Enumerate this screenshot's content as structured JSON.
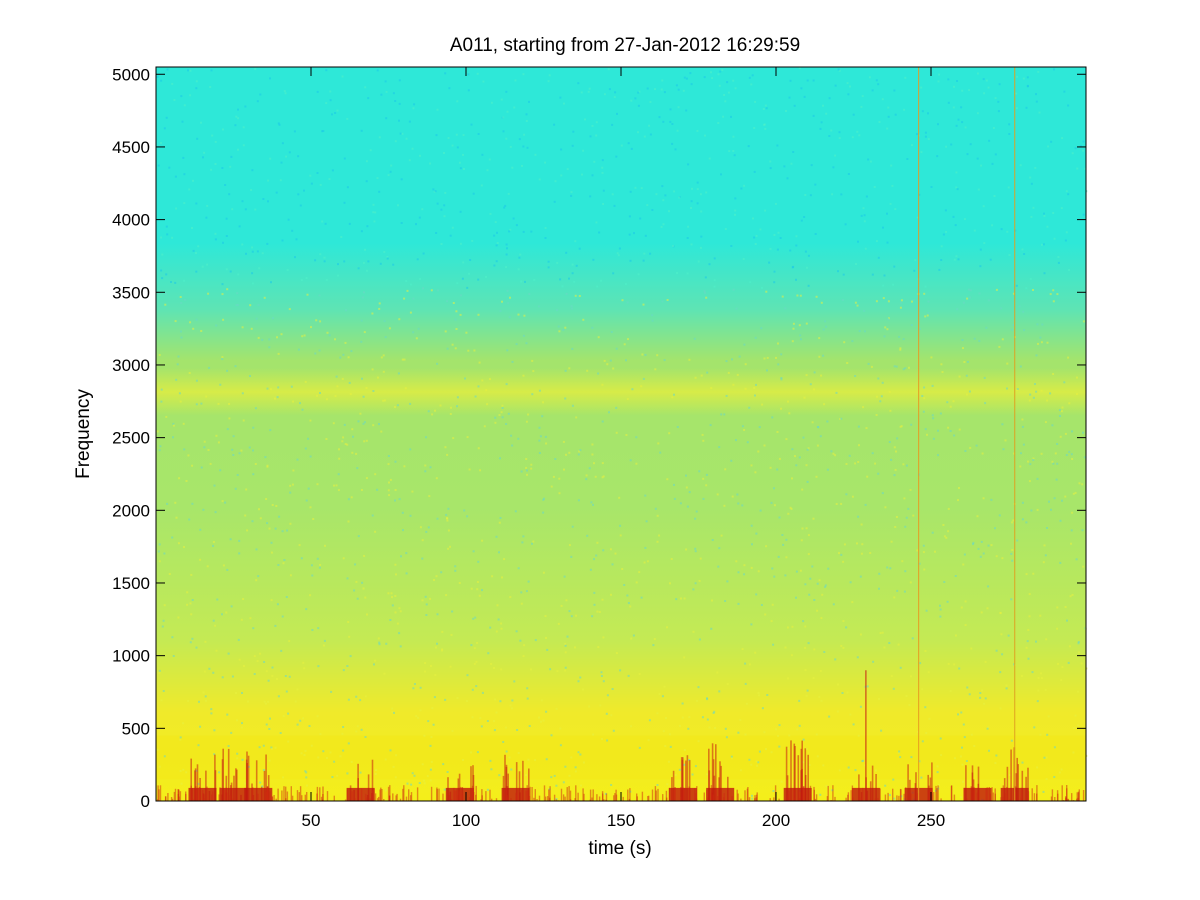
{
  "chart_data": {
    "type": "heatmap",
    "title": "A011, starting from 27-Jan-2012 16:29:59",
    "xlabel": "time (s)",
    "ylabel": "Frequency",
    "xlim": [
      0,
      300
    ],
    "ylim": [
      0,
      5050
    ],
    "xticks": [
      50,
      100,
      150,
      200,
      250
    ],
    "yticks": [
      0,
      500,
      1000,
      1500,
      2000,
      2500,
      3000,
      3500,
      4000,
      4500,
      5000
    ],
    "grid": false,
    "colormap": "jet",
    "colormap_stops": [
      "#2ee6e0",
      "#6ee89a",
      "#b8ee5a",
      "#f2f21c",
      "#f4a01a",
      "#c81e12"
    ],
    "background_band": {
      "high_freq_color": "#2ee8d8",
      "mid_freq_color": "#8fe07a",
      "low_freq_color": "#f0ea2a"
    },
    "harmonic_band": {
      "freq_range": [
        2650,
        2980
      ],
      "color": "#e8ee3c"
    },
    "low_freq_band": {
      "freq_range": [
        150,
        450
      ],
      "color": "#f2e818"
    },
    "bursts": [
      {
        "t": 15,
        "strength": 0.85
      },
      {
        "t": 25,
        "strength": 1.0
      },
      {
        "t": 33,
        "strength": 0.7
      },
      {
        "t": 66,
        "strength": 0.6
      },
      {
        "t": 98,
        "strength": 0.55
      },
      {
        "t": 116,
        "strength": 0.75
      },
      {
        "t": 170,
        "strength": 0.7
      },
      {
        "t": 182,
        "strength": 0.85
      },
      {
        "t": 207,
        "strength": 0.95
      },
      {
        "t": 229,
        "strength": 0.5
      },
      {
        "t": 246,
        "strength": 0.6
      },
      {
        "t": 277,
        "strength": 0.8
      },
      {
        "t": 265,
        "strength": 0.5
      }
    ],
    "vertical_lines": [
      {
        "t": 229,
        "fmax": 900,
        "color": "#c81e12"
      },
      {
        "t": 246,
        "fmax": 5050,
        "color": "#e89a20"
      },
      {
        "t": 277,
        "fmax": 5050,
        "color": "#e0a020"
      }
    ]
  }
}
